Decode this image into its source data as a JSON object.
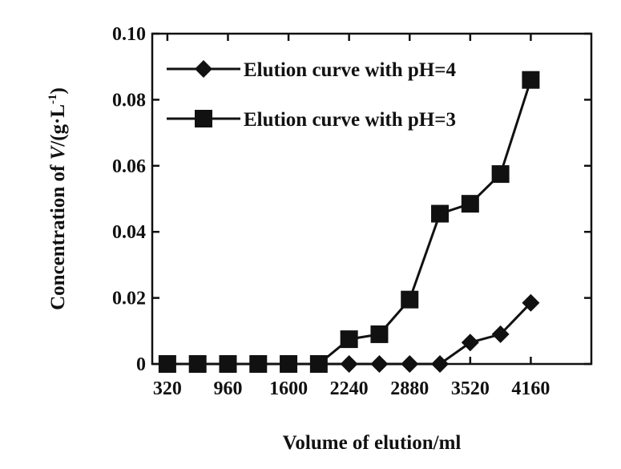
{
  "chart_data": {
    "type": "line",
    "xlabel": "Volume of elution/ml",
    "ylabel": "Concentration of V/(g·L⁻¹)",
    "ylabel_parts": [
      "Concentration of ",
      "V",
      "/(g·L",
      "-1",
      ")"
    ],
    "xlim": [
      160,
      4800
    ],
    "ylim": [
      0,
      0.1
    ],
    "x_ticks": [
      320,
      960,
      1600,
      2240,
      2880,
      3520,
      4160
    ],
    "x_tick_labels": [
      "320",
      "960",
      "1600",
      "2240",
      "2880",
      "3520",
      "4160"
    ],
    "y_ticks": [
      0,
      0.02,
      0.04,
      0.06,
      0.08,
      0.1
    ],
    "y_tick_labels": [
      "0",
      "0.02",
      "0.04",
      "0.06",
      "0.08",
      "0.10"
    ],
    "grid": false,
    "legend_position": "top-left",
    "series": [
      {
        "name": "Elution curve with pH=4",
        "marker": "diamond",
        "x": [
          320,
          640,
          960,
          1280,
          1600,
          1920,
          2240,
          2560,
          2880,
          3200,
          3520,
          3840,
          4160
        ],
        "y": [
          0,
          0,
          0,
          0,
          0,
          0,
          0,
          0,
          0,
          0,
          0.0065,
          0.009,
          0.0185
        ]
      },
      {
        "name": "Elution curve with pH=3",
        "marker": "square",
        "x": [
          320,
          640,
          960,
          1280,
          1600,
          1920,
          2240,
          2560,
          2880,
          3200,
          3520,
          3840,
          4160
        ],
        "y": [
          0,
          0,
          0,
          0,
          0,
          0,
          0.0075,
          0.009,
          0.0195,
          0.0455,
          0.0485,
          0.0575,
          0.086
        ]
      }
    ]
  }
}
